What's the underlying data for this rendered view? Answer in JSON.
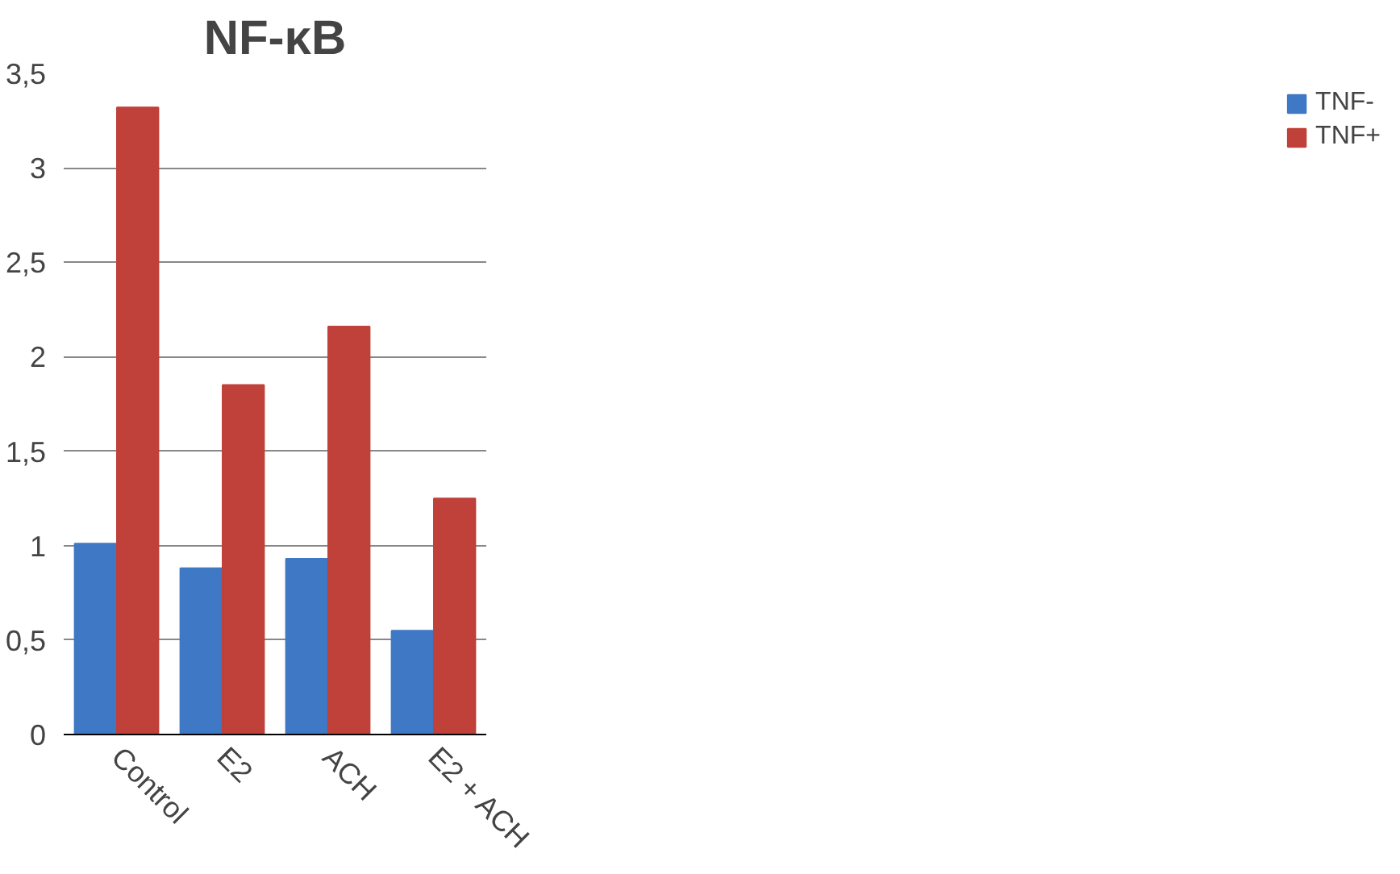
{
  "chart_data": {
    "type": "bar",
    "title": "NF-κB",
    "categories": [
      "Control",
      "E2",
      "ACH",
      "E2 + ACH"
    ],
    "series": [
      {
        "name": "TNF-",
        "color": "#3f78c4",
        "values": [
          1.01,
          0.88,
          0.93,
          0.55
        ]
      },
      {
        "name": "TNF+",
        "color": "#c0403a",
        "values": [
          3.32,
          1.85,
          2.16,
          1.25
        ]
      }
    ],
    "ylim": [
      0,
      3.5
    ],
    "yticks": [
      0,
      {
        "value": 0.5,
        "label": "0,5"
      },
      1,
      {
        "value": 1.5,
        "label": "1,5"
      },
      2,
      {
        "value": 2.5,
        "label": "2,5"
      },
      3,
      {
        "value": 3.5,
        "label": "3,5"
      }
    ],
    "grid": "y",
    "legend": "right"
  }
}
